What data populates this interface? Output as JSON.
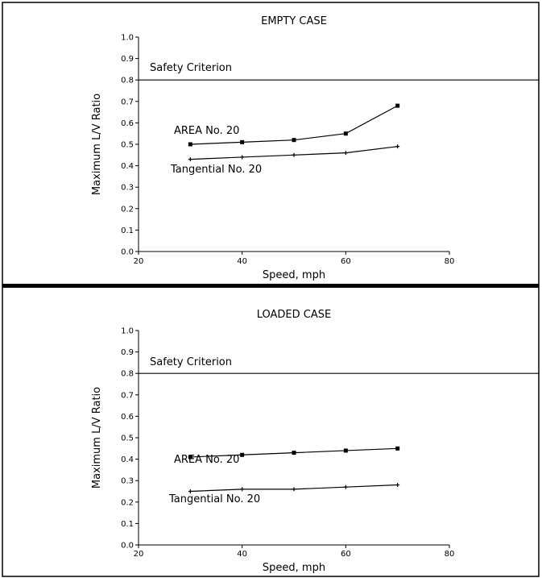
{
  "chart_data": [
    {
      "type": "line",
      "title": "EMPTY CASE",
      "xlabel": "Speed, mph",
      "ylabel": "Maximum L/V Ratio",
      "xlim": [
        20,
        80
      ],
      "ylim": [
        0.0,
        1.0
      ],
      "x_ticks": [
        20,
        40,
        60,
        80
      ],
      "y_ticks": [
        0.0,
        0.1,
        0.2,
        0.3,
        0.4,
        0.5,
        0.6,
        0.7,
        0.8,
        0.9,
        1.0
      ],
      "x_tick_labels": [
        "20",
        "40",
        "60",
        "80"
      ],
      "y_tick_labels": [
        "0.0",
        "0.1",
        "0.2",
        "0.3",
        "0.4",
        "0.5",
        "0.6",
        "0.7",
        "0.8",
        "0.9",
        "1.0"
      ],
      "grid": false,
      "legend": "none (series labeled directly on chart)",
      "reference_line": {
        "label": "Safety Criterion",
        "y": 0.8
      },
      "series": [
        {
          "name": "AREA No. 20",
          "marker": "square",
          "x": [
            30,
            40,
            50,
            60,
            70
          ],
          "y": [
            0.5,
            0.51,
            0.52,
            0.55,
            0.68
          ]
        },
        {
          "name": "Tangential No. 20",
          "marker": "plus",
          "x": [
            30,
            40,
            50,
            60,
            70
          ],
          "y": [
            0.43,
            0.44,
            0.45,
            0.46,
            0.49
          ]
        }
      ]
    },
    {
      "type": "line",
      "title": "LOADED CASE",
      "xlabel": "Speed, mph",
      "ylabel": "Maximum L/V Ratio",
      "xlim": [
        20,
        80
      ],
      "ylim": [
        0.0,
        1.0
      ],
      "x_ticks": [
        20,
        40,
        60,
        80
      ],
      "y_ticks": [
        0.0,
        0.1,
        0.2,
        0.3,
        0.4,
        0.5,
        0.6,
        0.7,
        0.8,
        0.9,
        1.0
      ],
      "x_tick_labels": [
        "20",
        "40",
        "60",
        "80"
      ],
      "y_tick_labels": [
        "0.0",
        "0.1",
        "0.2",
        "0.3",
        "0.4",
        "0.5",
        "0.6",
        "0.7",
        "0.8",
        "0.9",
        "1.0"
      ],
      "grid": false,
      "legend": "none (series labeled directly on chart)",
      "reference_line": {
        "label": "Safety Criterion",
        "y": 0.8
      },
      "series": [
        {
          "name": "AREA No. 20",
          "marker": "square",
          "x": [
            30,
            40,
            50,
            60,
            70
          ],
          "y": [
            0.41,
            0.42,
            0.43,
            0.44,
            0.45
          ]
        },
        {
          "name": "Tangential No. 20",
          "marker": "plus",
          "x": [
            30,
            40,
            50,
            60,
            70
          ],
          "y": [
            0.25,
            0.26,
            0.26,
            0.27,
            0.28
          ]
        }
      ]
    }
  ]
}
